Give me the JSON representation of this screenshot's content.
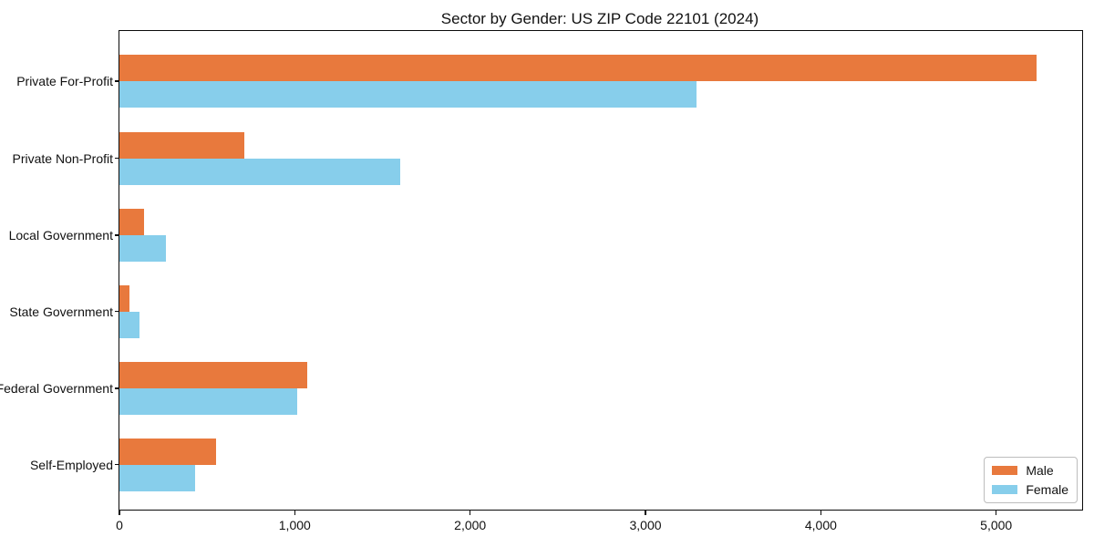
{
  "chart_data": {
    "type": "bar",
    "orientation": "horizontal",
    "title": "Sector by Gender: US ZIP Code 22101 (2024)",
    "xlabel": "",
    "ylabel": "",
    "grid": false,
    "background_color": "#ffffff",
    "spine_color": "#0a0a0a",
    "categories": [
      "Private For-Profit",
      "Private Non-Profit",
      "Local Government",
      "State Government",
      "Federal Government",
      "Self-Employed"
    ],
    "series": [
      {
        "name": "Male",
        "color": "#E8793D",
        "values": [
          5230,
          710,
          140,
          55,
          1070,
          550
        ]
      },
      {
        "name": "Female",
        "color": "#87CEEB",
        "values": [
          3290,
          1600,
          265,
          115,
          1015,
          430
        ]
      }
    ],
    "xlim": [
      0,
      5490
    ],
    "x_ticks": [
      {
        "value": 0,
        "label": "0"
      },
      {
        "value": 1000,
        "label": "1,000"
      },
      {
        "value": 2000,
        "label": "2,000"
      },
      {
        "value": 3000,
        "label": "3,000"
      },
      {
        "value": 4000,
        "label": "4,000"
      },
      {
        "value": 5000,
        "label": "5,000"
      }
    ],
    "legend": {
      "position": "lower right",
      "entries": [
        "Male",
        "Female"
      ]
    }
  }
}
